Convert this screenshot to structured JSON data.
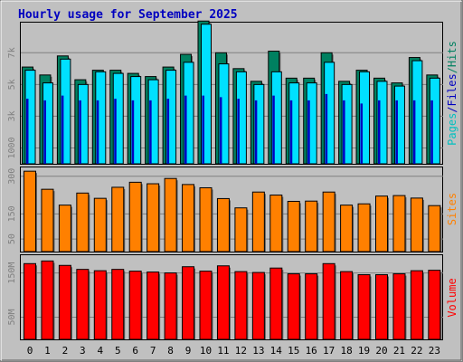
{
  "chart_data": [
    {
      "type": "bar",
      "title": "Hourly usage for September 2025",
      "categories": [
        "0",
        "1",
        "2",
        "3",
        "4",
        "5",
        "6",
        "7",
        "8",
        "9",
        "10",
        "11",
        "12",
        "13",
        "14",
        "15",
        "16",
        "17",
        "18",
        "19",
        "20",
        "21",
        "22",
        "23"
      ],
      "ylabel_parts": [
        "Pages",
        "/",
        "Files",
        "/",
        "Hits"
      ],
      "yticks": [
        1000,
        3000,
        5000,
        7000
      ],
      "ytick_labels": [
        "1000",
        "3k",
        "5k",
        "7k"
      ],
      "ylim": [
        0,
        8900
      ],
      "series": [
        {
          "name": "Hits",
          "color": "#008060",
          "values": [
            6100,
            5600,
            6800,
            5300,
            5900,
            5900,
            5700,
            5500,
            6100,
            6900,
            9000,
            7000,
            6000,
            5200,
            7100,
            5400,
            5400,
            7000,
            5200,
            5900,
            5400,
            5100,
            6700,
            5600
          ]
        },
        {
          "name": "Files",
          "color": "#00e0ff",
          "values": [
            5900,
            5100,
            6600,
            5000,
            5800,
            5700,
            5500,
            5300,
            5900,
            6400,
            8800,
            6300,
            5800,
            5000,
            5800,
            5100,
            5100,
            6400,
            5000,
            5800,
            5200,
            4900,
            6500,
            5400
          ]
        },
        {
          "name": "Pages",
          "color": "#0000c0",
          "values": [
            4100,
            4000,
            4300,
            4000,
            4000,
            4100,
            4000,
            4000,
            4100,
            4300,
            4300,
            4200,
            4100,
            4000,
            4300,
            4000,
            4000,
            4400,
            4000,
            3800,
            4000,
            4000,
            4000,
            4000
          ]
        }
      ]
    },
    {
      "type": "bar",
      "categories": [
        "0",
        "1",
        "2",
        "3",
        "4",
        "5",
        "6",
        "7",
        "8",
        "9",
        "10",
        "11",
        "12",
        "13",
        "14",
        "15",
        "16",
        "17",
        "18",
        "19",
        "20",
        "21",
        "22",
        "23"
      ],
      "ylabel": "Sites",
      "yticks": [
        50,
        150,
        300
      ],
      "ytick_labels": [
        "50",
        "150",
        "300"
      ],
      "ylim": [
        0,
        335
      ],
      "series": [
        {
          "name": "Sites",
          "color": "#ff8000",
          "values": [
            320,
            248,
            185,
            233,
            212,
            256,
            276,
            270,
            291,
            267,
            254,
            211,
            174,
            237,
            225,
            200,
            201,
            237,
            185,
            190,
            221,
            223,
            213,
            183
          ]
        }
      ]
    },
    {
      "type": "bar",
      "categories": [
        "0",
        "1",
        "2",
        "3",
        "4",
        "5",
        "6",
        "7",
        "8",
        "9",
        "10",
        "11",
        "12",
        "13",
        "14",
        "15",
        "16",
        "17",
        "18",
        "19",
        "20",
        "21",
        "22",
        "23"
      ],
      "ylabel": "Volume",
      "yticks": [
        50,
        150
      ],
      "ytick_labels": [
        "50M",
        "150M"
      ],
      "ylim": [
        0,
        190
      ],
      "series": [
        {
          "name": "Volume",
          "color": "#ff0000",
          "values": [
            171,
            177,
            167,
            158,
            155,
            158,
            154,
            152,
            150,
            164,
            154,
            166,
            153,
            151,
            161,
            148,
            148,
            171,
            153,
            146,
            146,
            148,
            155,
            156
          ]
        }
      ]
    }
  ]
}
